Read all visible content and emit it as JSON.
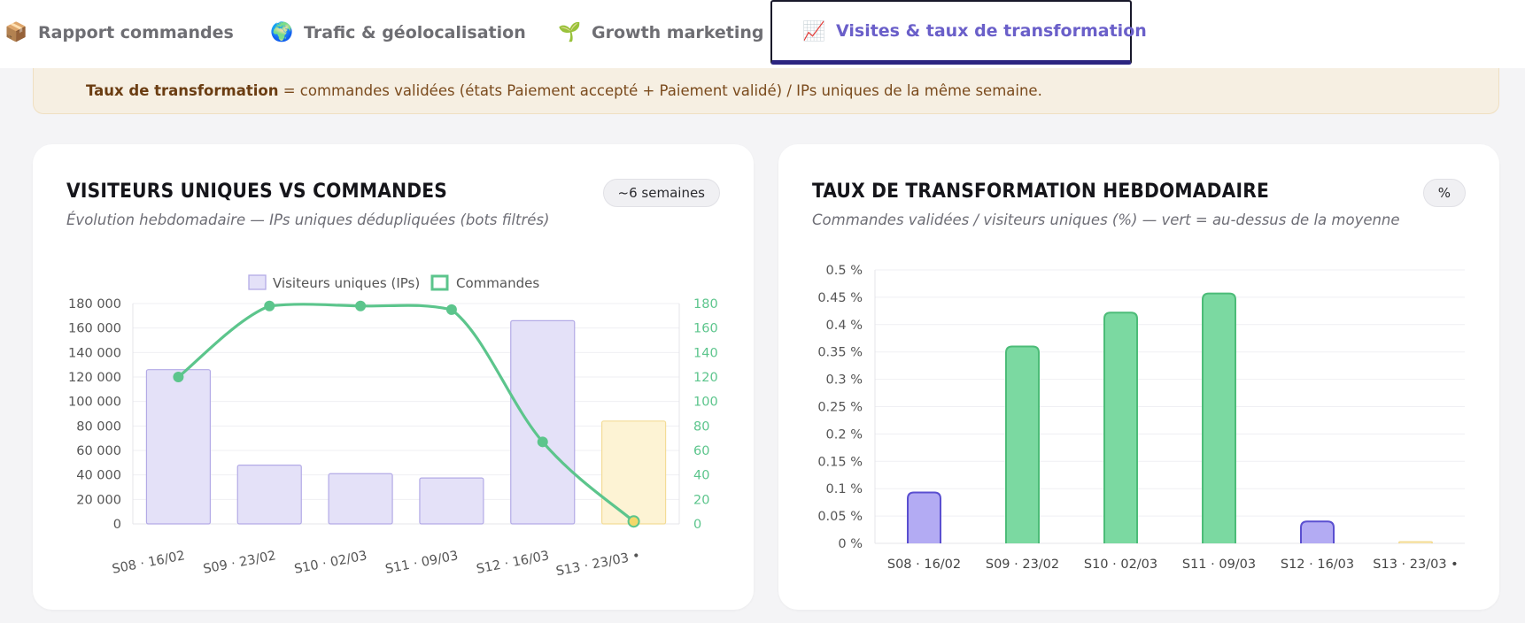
{
  "tabs": [
    {
      "icon": "📦",
      "icon_name": "package-icon",
      "label": "Rapport commandes",
      "active": false
    },
    {
      "icon": "🌍",
      "icon_name": "globe-icon",
      "label": "Trafic & géolocalisation",
      "active": false
    },
    {
      "icon": "🌱",
      "icon_name": "seedling-icon",
      "label": "Growth marketing",
      "active": false
    },
    {
      "icon": "📈",
      "icon_name": "chart-increasing-icon",
      "label": "Visites & taux de transformation",
      "active": true
    }
  ],
  "info": {
    "bold": "Taux de transformation",
    "text": " = commandes validées (états Paiement accepté + Paiement validé) / IPs uniques de la même semaine."
  },
  "colors": {
    "visitors_fill": "#e4e1f8",
    "visitors_border": "#b3aae6",
    "current_fill": "#fdf3d4",
    "current_border": "#f3dc96",
    "orders_line": "#5cc58c",
    "rate_above": "#7bd9a1",
    "rate_above_border": "#4cbc78",
    "rate_below": "#b3abf3",
    "rate_below_border": "#5a4fd0",
    "accent": "#6a5fc9"
  },
  "cards": {
    "left": {
      "title": "Visiteurs uniques vs commandes",
      "subtitle": "Évolution hebdomadaire — IPs uniques dédupliquées (bots filtrés)",
      "badge": "~6 semaines"
    },
    "right": {
      "title": "Taux de transformation hebdomadaire",
      "subtitle": "Commandes validées / visiteurs uniques (%) — vert = au-dessus de la moyenne",
      "badge": "%"
    }
  },
  "chart_data": [
    {
      "type": "bar",
      "title": "Visiteurs uniques vs commandes",
      "categories": [
        "S08 · 16/02",
        "S09 · 23/02",
        "S10 · 02/03",
        "S11 · 09/03",
        "S12 · 16/03",
        "S13 · 23/03 •"
      ],
      "legend": {
        "position": "top",
        "entries": [
          "Visiteurs uniques (IPs)",
          "Commandes"
        ]
      },
      "series": [
        {
          "name": "Visiteurs uniques (IPs)",
          "type": "bar",
          "axis": "left",
          "values": [
            126000,
            48000,
            41000,
            37500,
            166000,
            84000
          ]
        },
        {
          "name": "Commandes",
          "type": "line",
          "axis": "right",
          "values": [
            120,
            178,
            178,
            175,
            67,
            2
          ]
        }
      ],
      "y_left": {
        "ylim": [
          0,
          180000
        ],
        "ticks": [
          "0",
          "20 000",
          "40 000",
          "60 000",
          "80 000",
          "100 000",
          "120 000",
          "140 000",
          "160 000",
          "180 000"
        ]
      },
      "y_right": {
        "ylim": [
          0,
          180
        ],
        "ticks": [
          "0",
          "20",
          "40",
          "60",
          "80",
          "100",
          "120",
          "140",
          "160",
          "180"
        ]
      },
      "grid": true,
      "current_week_index": 5
    },
    {
      "type": "bar",
      "title": "Taux de transformation hebdomadaire",
      "categories": [
        "S08 · 16/02",
        "S09 · 23/02",
        "S10 · 02/03",
        "S11 · 09/03",
        "S12 · 16/03",
        "S13 · 23/03 •"
      ],
      "values": [
        0.093,
        0.36,
        0.422,
        0.457,
        0.04,
        0.002
      ],
      "above_average": [
        false,
        true,
        true,
        true,
        false,
        false
      ],
      "ylim": [
        0,
        0.5
      ],
      "yticks": [
        "0 %",
        "0.05 %",
        "0.1 %",
        "0.15 %",
        "0.2 %",
        "0.25 %",
        "0.3 %",
        "0.35 %",
        "0.4 %",
        "0.45 %",
        "0.5 %"
      ],
      "unit": "%",
      "grid": true,
      "current_week_index": 5
    }
  ]
}
